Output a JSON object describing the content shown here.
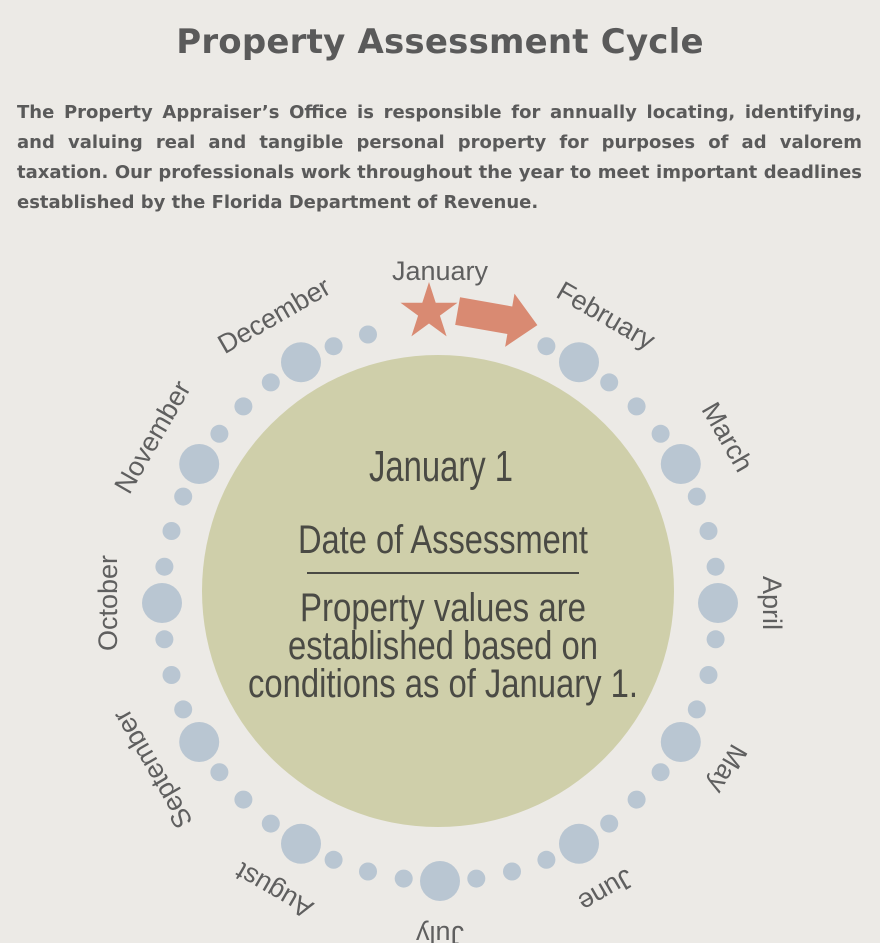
{
  "page": {
    "title": "Property Assessment Cycle",
    "intro": "The Property Appraiser’s Office is responsible for annually locating, identifying, and valuing real and tangible personal property for purposes of ad valorem taxation. Our professionals work throughout the year to meet important deadlines established by the Florida Department of Revenue."
  },
  "cycle": {
    "months": [
      "January",
      "February",
      "March",
      "April",
      "May",
      "June",
      "July",
      "August",
      "September",
      "October",
      "November",
      "December"
    ],
    "current_month_index": 0,
    "center": {
      "date": "January 1",
      "event": "Date of Assessment",
      "description_lines": [
        "Property values are",
        "established based on",
        "conditions as of January 1."
      ]
    },
    "colors": {
      "background": "#eceae6",
      "center_fill": "#cfcfaa",
      "dot": "#b9c6d2",
      "marker": "#d98a72",
      "text": "#5f5f5f"
    },
    "icons": {
      "start_marker": "star-icon",
      "direction": "arrow-right-icon"
    }
  }
}
